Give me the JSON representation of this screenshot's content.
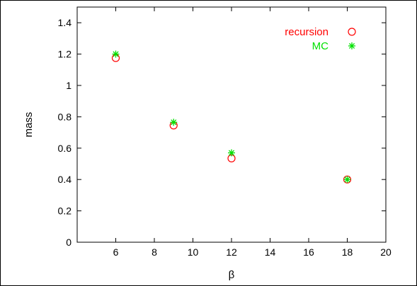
{
  "chart_data": {
    "type": "scatter",
    "title": "",
    "xlabel": "β",
    "ylabel": "mass",
    "xlim": [
      4,
      20
    ],
    "ylim": [
      0,
      1.5
    ],
    "xticks": [
      6,
      8,
      10,
      12,
      14,
      16,
      18,
      20
    ],
    "yticks": [
      0,
      0.2,
      0.4,
      0.6,
      0.8,
      1,
      1.2,
      1.4
    ],
    "xtick_labels": [
      "6",
      "8",
      "10",
      "12",
      "14",
      "16",
      "18",
      "20"
    ],
    "ytick_labels": [
      "0",
      "0.2",
      "0.4",
      "0.6",
      "0.8",
      "1",
      "1.2",
      "1.4"
    ],
    "grid": false,
    "legend_position": "top-right",
    "series": [
      {
        "name": "recursion",
        "marker": "circle",
        "color": "#ff0000",
        "points": [
          {
            "x": 6,
            "y": 1.175
          },
          {
            "x": 9,
            "y": 0.745
          },
          {
            "x": 12,
            "y": 0.535
          },
          {
            "x": 18,
            "y": 0.4
          }
        ]
      },
      {
        "name": "MC",
        "marker": "star",
        "color": "#00e000",
        "points": [
          {
            "x": 6,
            "y": 1.2
          },
          {
            "x": 9,
            "y": 0.765
          },
          {
            "x": 12,
            "y": 0.57
          },
          {
            "x": 18,
            "y": 0.4
          }
        ]
      }
    ]
  }
}
